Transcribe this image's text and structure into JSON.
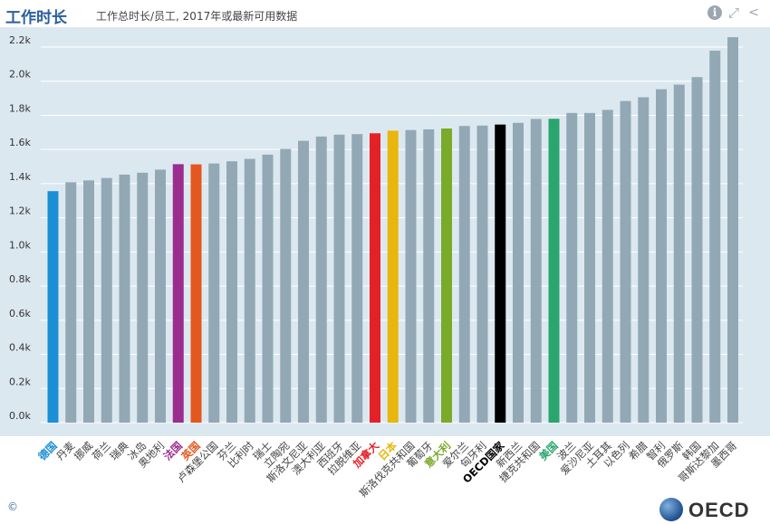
{
  "header": {
    "title": "工作时长",
    "subtitle": "工作总时长/员工, 2017年或最新可用数据",
    "icons": [
      "info-icon",
      "expand-icon",
      "share-icon"
    ]
  },
  "footer": {
    "copyright": "©",
    "logo_text": "OECD"
  },
  "chart_data": {
    "type": "bar",
    "title": "工作总时长/员工, 2017年或最新可用数据",
    "xlabel": "",
    "ylabel": "",
    "ylim": [
      0,
      2300
    ],
    "yticks": [
      0,
      200,
      400,
      600,
      800,
      1000,
      1200,
      1400,
      1600,
      1800,
      2000,
      2200
    ],
    "ytick_labels": [
      "0.0k",
      "0.2k",
      "0.4k",
      "0.6k",
      "0.8k",
      "1.0k",
      "1.2k",
      "1.4k",
      "1.6k",
      "1.8k",
      "2.0k",
      "2.2k"
    ],
    "grid": true,
    "default_color": "#93a8b5",
    "categories": [
      "德国",
      "丹麦",
      "挪威",
      "荷兰",
      "瑞典",
      "冰岛",
      "奥地利",
      "法国",
      "英国",
      "卢森堡公国",
      "芬兰",
      "比利时",
      "瑞士",
      "立陶宛",
      "斯洛文尼亚",
      "澳大利亚",
      "西班牙",
      "拉脱维亚",
      "加拿大",
      "日本",
      "斯洛伐克共和国",
      "葡萄牙",
      "意大利",
      "爱尔兰",
      "匈牙利",
      "OECD国家",
      "新西兰",
      "捷克共和国",
      "美国",
      "波兰",
      "爱沙尼亚",
      "土耳其",
      "以色列",
      "希腊",
      "智利",
      "俄罗斯",
      "韩国",
      "哥斯达黎加",
      "墨西哥"
    ],
    "values": [
      1356,
      1408,
      1419,
      1433,
      1453,
      1464,
      1482,
      1514,
      1513,
      1518,
      1531,
      1545,
      1570,
      1603,
      1651,
      1676,
      1687,
      1690,
      1695,
      1710,
      1714,
      1718,
      1723,
      1738,
      1740,
      1746,
      1756,
      1779,
      1780,
      1814,
      1814,
      1832,
      1884,
      1906,
      1953,
      1980,
      2024,
      2179,
      2258
    ],
    "highlights": {
      "德国": "#1b8fd6",
      "法国": "#9b2d8e",
      "英国": "#e4571e",
      "加拿大": "#e32228",
      "日本": "#e8b60c",
      "意大利": "#7aaa2a",
      "OECD国家": "#000000",
      "美国": "#2aa56e"
    },
    "label_colors": {
      "德国": "#1b8fd6",
      "法国": "#9b2d8e",
      "英国": "#e4571e",
      "加拿大": "#e32228",
      "日本": "#e8b60c",
      "意大利": "#7aaa2a",
      "OECD国家": "#000000",
      "美国": "#2aa56e"
    }
  }
}
